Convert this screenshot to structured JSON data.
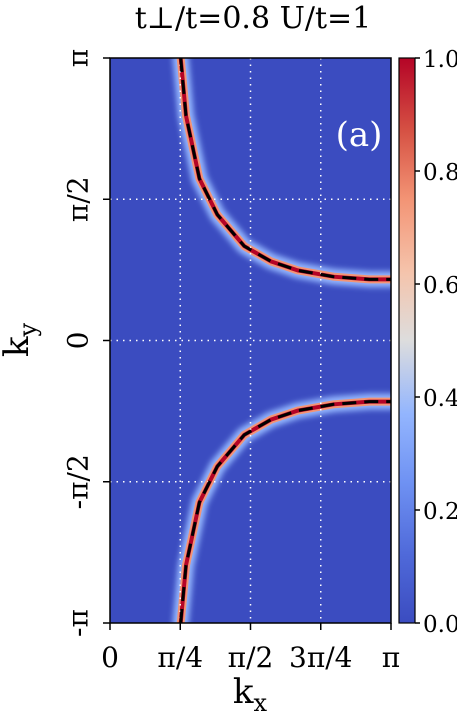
{
  "chart_data": {
    "type": "heatmap",
    "title": "t⊥/t=0.8  U/t=1",
    "panel_label": "(a)",
    "xlabel": "k",
    "xlabel_sub": "x",
    "ylabel": "k",
    "ylabel_sub": "y",
    "xlim": [
      0,
      3.14159
    ],
    "ylim": [
      -3.14159,
      3.14159
    ],
    "x_ticks": [
      {
        "value": 0,
        "label": "0"
      },
      {
        "value": 0.7854,
        "label": "π/4"
      },
      {
        "value": 1.5708,
        "label": "π/2"
      },
      {
        "value": 2.3562,
        "label": "3π/4"
      },
      {
        "value": 3.14159,
        "label": "π"
      }
    ],
    "y_ticks": [
      {
        "value": -3.14159,
        "label": "-π"
      },
      {
        "value": -1.5708,
        "label": "-π/2"
      },
      {
        "value": 0,
        "label": "0"
      },
      {
        "value": 1.5708,
        "label": "π/2"
      },
      {
        "value": 3.14159,
        "label": "π"
      }
    ],
    "colorbar": {
      "min": 0.0,
      "max": 1.0,
      "ticks": [
        {
          "value": 0.0,
          "label": "0.0"
        },
        {
          "value": 0.2,
          "label": "0.2"
        },
        {
          "value": 0.4,
          "label": "0.4"
        },
        {
          "value": 0.6,
          "label": "0.6"
        },
        {
          "value": 0.8,
          "label": "0.8"
        },
        {
          "value": 1.0,
          "label": "1.0"
        }
      ],
      "colormap": "coolwarm"
    },
    "grid": "dotted, at x = π/4, π/2, 3π/4 and y = -π/2, 0, π/2",
    "colors": {
      "background_low": "#3b4cc0",
      "ridge_high": "#b40426",
      "dashed_curve": "#000000",
      "grid": "#ffffff"
    },
    "curve": {
      "description": "Fermi surface: ridge of high intensity with dashed overlay",
      "upper_branch": [
        {
          "x": 0.79,
          "y": 3.14
        },
        {
          "x": 0.85,
          "y": 2.5
        },
        {
          "x": 1.0,
          "y": 1.8
        },
        {
          "x": 1.2,
          "y": 1.4
        },
        {
          "x": 1.5,
          "y": 1.05
        },
        {
          "x": 1.8,
          "y": 0.88
        },
        {
          "x": 2.1,
          "y": 0.78
        },
        {
          "x": 2.5,
          "y": 0.71
        },
        {
          "x": 2.9,
          "y": 0.68
        },
        {
          "x": 3.14,
          "y": 0.68
        }
      ],
      "lower_branch": [
        {
          "x": 0.79,
          "y": -3.14
        },
        {
          "x": 0.85,
          "y": -2.5
        },
        {
          "x": 1.0,
          "y": -1.8
        },
        {
          "x": 1.2,
          "y": -1.4
        },
        {
          "x": 1.5,
          "y": -1.05
        },
        {
          "x": 1.8,
          "y": -0.88
        },
        {
          "x": 2.1,
          "y": -0.78
        },
        {
          "x": 2.5,
          "y": -0.71
        },
        {
          "x": 2.9,
          "y": -0.68
        },
        {
          "x": 3.14,
          "y": -0.68
        }
      ]
    }
  }
}
